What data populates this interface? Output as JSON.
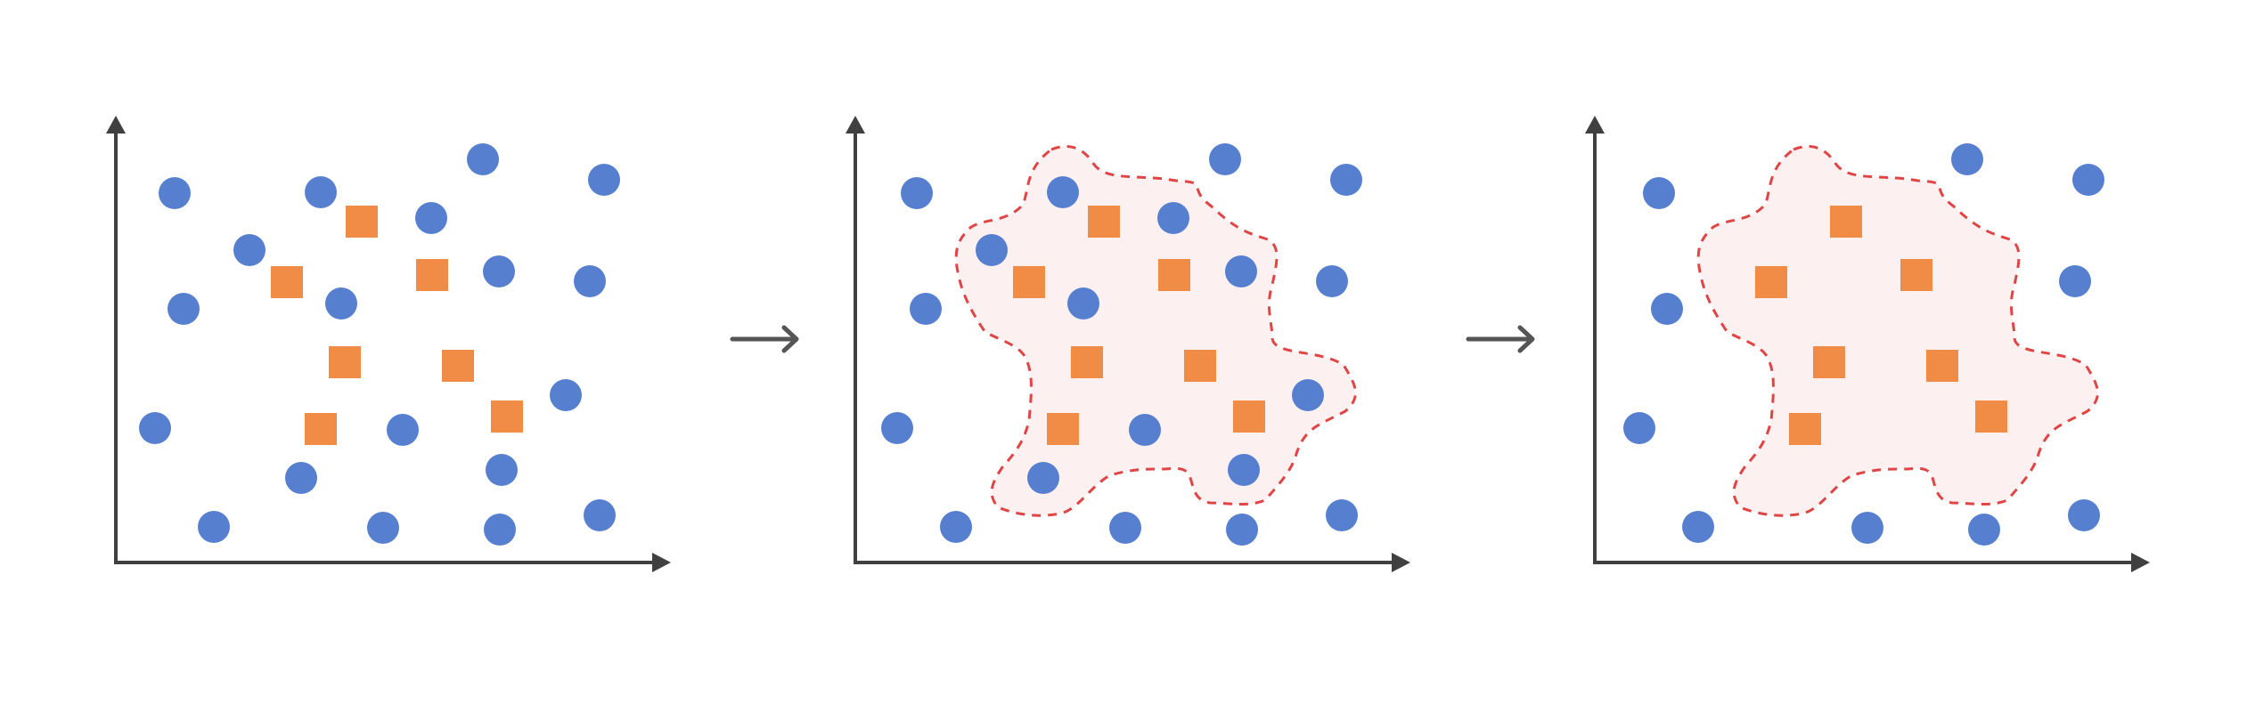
{
  "colors": {
    "background": "#ffffff",
    "axis": "#404040",
    "circle": "#5680cf",
    "square": "#f08c45",
    "region_fill": "#fcf0f1",
    "region_stroke": "#e04545",
    "arrow": "#555555"
  },
  "panels": [
    {
      "id": "panel-1",
      "circles": [
        [
          196,
          217
        ],
        [
          360,
          216
        ],
        [
          542,
          179
        ],
        [
          678,
          202
        ],
        [
          280,
          281
        ],
        [
          484,
          245
        ],
        [
          560,
          305
        ],
        [
          206,
          347
        ],
        [
          383,
          341
        ],
        [
          662,
          316
        ],
        [
          635,
          444
        ],
        [
          174,
          481
        ],
        [
          452,
          483
        ],
        [
          338,
          537
        ],
        [
          563,
          528
        ],
        [
          673,
          579
        ],
        [
          240,
          592
        ],
        [
          430,
          593
        ],
        [
          561,
          595
        ]
      ],
      "squares": [
        [
          406,
          249
        ],
        [
          322,
          317
        ],
        [
          485,
          309
        ],
        [
          387,
          407
        ],
        [
          514,
          411
        ],
        [
          569,
          468
        ],
        [
          360,
          482
        ]
      ],
      "region": false
    },
    {
      "id": "panel-2",
      "circles": [
        [
          1029,
          217
        ],
        [
          1193,
          216
        ],
        [
          1375,
          179
        ],
        [
          1511,
          202
        ],
        [
          1113,
          281
        ],
        [
          1317,
          245
        ],
        [
          1393,
          305
        ],
        [
          1039,
          347
        ],
        [
          1216,
          341
        ],
        [
          1495,
          316
        ],
        [
          1468,
          444
        ],
        [
          1007,
          481
        ],
        [
          1285,
          483
        ],
        [
          1171,
          537
        ],
        [
          1396,
          528
        ],
        [
          1506,
          579
        ],
        [
          1073,
          592
        ],
        [
          1263,
          593
        ],
        [
          1394,
          595
        ]
      ],
      "squares": [
        [
          1239,
          249
        ],
        [
          1155,
          317
        ],
        [
          1318,
          309
        ],
        [
          1220,
          407
        ],
        [
          1347,
          411
        ],
        [
          1402,
          468
        ],
        [
          1193,
          482
        ]
      ],
      "region": true
    },
    {
      "id": "panel-3",
      "circles": [
        [
          1862,
          217
        ],
        [
          2208,
          179
        ],
        [
          2344,
          202
        ],
        [
          1871,
          347
        ],
        [
          2329,
          316
        ],
        [
          1840,
          481
        ],
        [
          2339,
          579
        ],
        [
          1906,
          592
        ],
        [
          2096,
          593
        ],
        [
          2227,
          595
        ]
      ],
      "squares": [
        [
          2072,
          249
        ],
        [
          1988,
          317
        ],
        [
          2151,
          309
        ],
        [
          2053,
          407
        ],
        [
          2180,
          411
        ],
        [
          2235,
          468
        ],
        [
          2026,
          482
        ]
      ],
      "region": true
    }
  ],
  "transitions": [
    {
      "id": "arrow-1-2"
    },
    {
      "id": "arrow-2-3"
    }
  ]
}
